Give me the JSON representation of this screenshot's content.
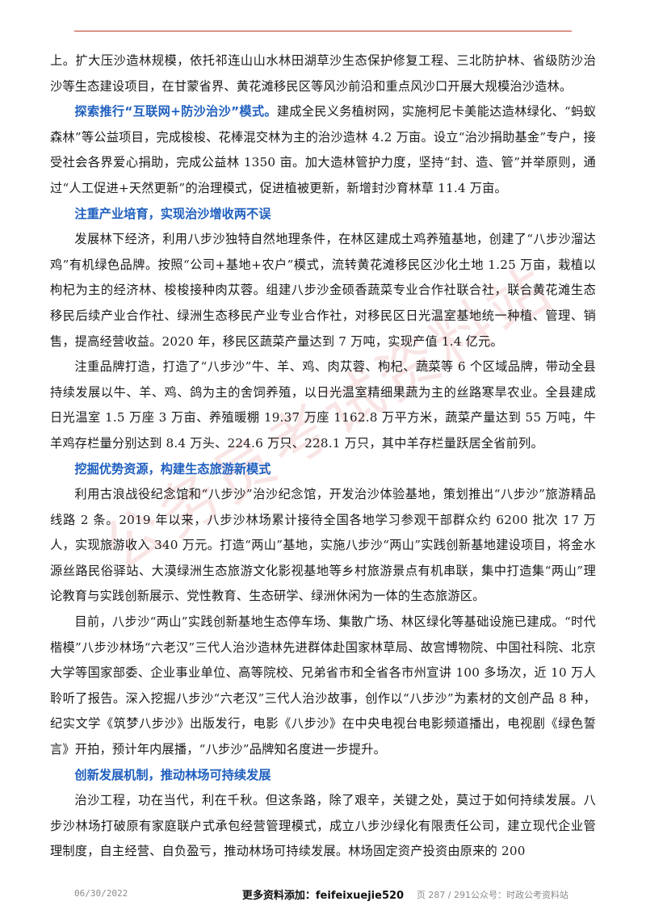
{
  "watermark": {
    "text": "公务员考试资料站",
    "color": "#e8a0a0"
  },
  "paragraphs": [
    {
      "type": "p",
      "cont": true,
      "text": "上。扩大压沙造林规模，依托祁连山山水林田湖草沙生态保护修复工程、三北防护林、省级防沙治沙等生态建设项目，在甘蒙省界、黄花滩移民区等风沙前沿和重点风沙口开展大规模治沙造林。"
    },
    {
      "type": "p",
      "head": "探索推行“互联网+防沙治沙”模式。",
      "text": "建成全民义务植树网，实施柯尼卡美能达造林绿化、“蚂蚁森林”等公益项目，完成梭梭、花棒混交林为主的治沙造林 4.2 万亩。设立“治沙捐助基金”专户，接受社会各界爱心捐助，完成公益林 1350 亩。加大造林管护力度，坚持“封、造、管”并举原则，通过“人工促进+天然更新”的治理模式，促进植被更新，新增封沙育林草 11.4 万亩。"
    },
    {
      "type": "h",
      "text": "注重产业培育，实现治沙增收两不误"
    },
    {
      "type": "p",
      "text": "发展林下经济，利用八步沙独特自然地理条件，在林区建成土鸡养殖基地，创建了“八步沙溜达鸡”有机绿色品牌。按照“公司+基地+农户”模式，流转黄花滩移民区沙化土地 1.25 万亩，栽植以枸杞为主的经济林、梭梭接种肉苁蓉。组建八步沙金硕香蔬菜专业合作社联合社，联合黄花滩生态移民后续产业合作社、绿洲生态移民产业专业合作社，对移民区日光温室基地统一种植、管理、销售，提高经营收益。2020 年，移民区蔬菜产量达到 7 万吨，实现产值 1.4 亿元。"
    },
    {
      "type": "p",
      "text": "注重品牌打造，打造了“八步沙”牛、羊、鸡、肉苁蓉、枸杞、蔬菜等 6 个区域品牌，带动全县持续发展以牛、羊、鸡、鸽为主的舍饲养殖，以日光温室精细果蔬为主的丝路寒旱农业。全县建成日光温室 1.5 万座 3 万亩、养殖暖棚 19.37 万座 1162.8 万平方米，蔬菜产量达到 55 万吨，牛羊鸡存栏量分别达到 8.4 万头、224.6 万只、228.1 万只，其中羊存栏量跃居全省前列。"
    },
    {
      "type": "h",
      "text": "挖掘优势资源，构建生态旅游新模式"
    },
    {
      "type": "p",
      "text": "利用古浪战役纪念馆和“八步沙”治沙纪念馆，开发治沙体验基地，策划推出“八步沙”旅游精品线路 2 条。2019 年以来，八步沙林场累计接待全国各地学习参观干部群众约 6200 批次 17 万人，实现旅游收入 340 万元。打造“两山”基地，实施八步沙“两山”实践创新基地建设项目，将金水源丝路民俗驿站、大漠绿洲生态旅游文化影视基地等乡村旅游景点有机串联，集中打造集“两山”理论教育与实践创新展示、党性教育、生态研学、绿洲休闲为一体的生态旅游区。"
    },
    {
      "type": "p",
      "text": "目前，八步沙“两山”实践创新基地生态停车场、集散广场、林区绿化等基础设施已建成。“时代楷模”八步沙林场“六老汉”三代人治沙造林先进群体赴国家林草局、故宫博物院、中国社科院、北京大学等国家部委、企业事业单位、高等院校、兄弟省市和全省各市州宣讲 100 多场次，近 10 万人聆听了报告。深入挖掘八步沙“六老汉”三代人治沙故事，创作以“八步沙”为素材的文创产品 8 种，纪实文学《筑梦八步沙》出版发行，电影《八步沙》在中央电视台电影频道播出，电视剧《绿色誓言》开拍，预计年内展播，“八步沙”品牌知名度进一步提升。"
    },
    {
      "type": "h",
      "text": "创新发展机制，推动林场可持续发展"
    },
    {
      "type": "p",
      "text": "治沙工程，功在当代，利在千秋。但这条路，除了艰辛，关键之处，莫过于如何持续发展。八步沙林场打破原有家庭联户式承包经营管理模式，成立八步沙绿化有限责任公司，建立现代企业管理制度，自主经营、自负盈亏，推动林场可持续发展。林场固定资产投资由原来的 200"
    }
  ],
  "footer": {
    "date": "06/30/2022",
    "middle": "更多资料添加：feifeixuejie520",
    "page": "页 287 / 291公众号：时政公考资料站"
  }
}
